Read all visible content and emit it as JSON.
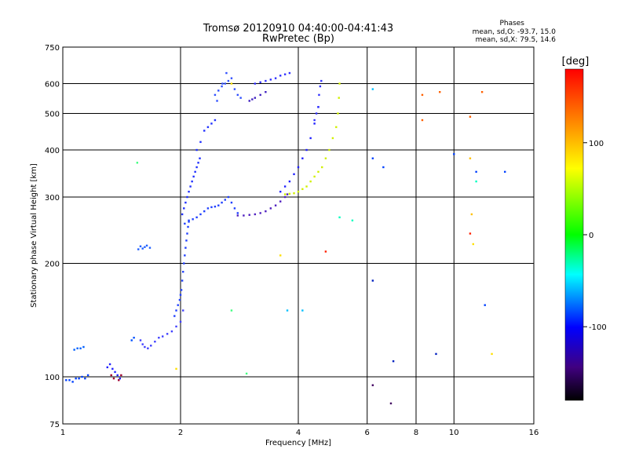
{
  "chart_data": {
    "type": "scatter",
    "title": "Tromsø 20120910 04:40:00-04:41:43",
    "subtitle": "RwPretec (Bp)",
    "xlabel": "Frequency [MHz]",
    "ylabel": "Stationary phase Virtual Height [km]",
    "x_scale": "log",
    "y_scale": "log",
    "xlim": [
      1,
      16
    ],
    "ylim": [
      75,
      750
    ],
    "x_ticks": [
      1,
      2,
      4,
      6,
      8,
      10,
      16
    ],
    "y_ticks": [
      75,
      100,
      200,
      300,
      400,
      500,
      600,
      750
    ],
    "grid": true,
    "stats": {
      "heading": "Phases",
      "line_o": "mean, sd,O: -93.7, 15.0",
      "line_x": "mean, sd,X:  79.5, 14.6"
    },
    "colorbar": {
      "label": "[deg]",
      "range": [
        -180,
        180
      ],
      "ticks": [
        100,
        0,
        -100
      ],
      "colors": [
        "#ff0000",
        "#ff8000",
        "#ffff00",
        "#00ff00",
        "#00ffff",
        "#0000ff",
        "#400080",
        "#000000"
      ]
    },
    "color_legend": {
      "blue": "-100",
      "purple": "-150",
      "yellow": "100",
      "lightblue": "-40",
      "orange": "150"
    },
    "series": [
      {
        "color": "#0040ff",
        "x": [
          1.02,
          1.04,
          1.06,
          1.08,
          1.1,
          1.12,
          1.14,
          1.16
        ],
        "y": [
          98,
          98,
          97,
          99,
          99,
          100,
          99,
          101
        ]
      },
      {
        "color": "#0060ff",
        "x": [
          1.07,
          1.09,
          1.11,
          1.13
        ],
        "y": [
          118,
          119,
          119,
          120
        ]
      },
      {
        "color": "#2020ff",
        "x": [
          1.3,
          1.32,
          1.34,
          1.36,
          1.38,
          1.4
        ],
        "y": [
          106,
          108,
          105,
          103,
          101,
          99
        ]
      },
      {
        "color": "#a00030",
        "x": [
          1.33,
          1.35,
          1.39,
          1.41
        ],
        "y": [
          101,
          99,
          98,
          101
        ]
      },
      {
        "color": "#2060ff",
        "x": [
          1.56,
          1.58,
          1.6,
          1.62,
          1.64,
          1.67
        ],
        "y": [
          218,
          222,
          219,
          221,
          223,
          220
        ]
      },
      {
        "color": "#0050ff",
        "x": [
          1.5,
          1.52
        ],
        "y": [
          125,
          127
        ]
      },
      {
        "color": "#4040ff",
        "x": [
          1.58,
          1.6,
          1.62,
          1.65,
          1.68,
          1.72,
          1.76,
          1.8,
          1.85,
          1.9,
          1.95,
          2.0,
          2.03
        ],
        "y": [
          125,
          122,
          120,
          119,
          121,
          124,
          127,
          128,
          130,
          132,
          136,
          140,
          150
        ]
      },
      {
        "color": "#2040ff",
        "x": [
          1.93,
          1.95,
          1.97,
          1.99,
          2.0,
          2.01,
          2.02,
          2.03,
          2.04,
          2.05,
          2.06,
          2.07,
          2.08,
          2.09,
          2.1
        ],
        "y": [
          145,
          150,
          155,
          160,
          165,
          170,
          180,
          190,
          200,
          210,
          220,
          230,
          240,
          250,
          260
        ]
      },
      {
        "color": "#2030ff",
        "x": [
          2.02,
          2.04,
          2.06,
          2.08,
          2.1,
          2.12,
          2.14,
          2.16,
          2.18,
          2.2,
          2.22,
          2.24
        ],
        "y": [
          270,
          280,
          290,
          300,
          310,
          320,
          330,
          340,
          350,
          360,
          370,
          380
        ]
      },
      {
        "color": "#2040ff",
        "x": [
          2.05,
          2.1,
          2.15,
          2.2,
          2.25,
          2.3,
          2.35,
          2.4,
          2.45,
          2.5,
          2.55,
          2.6,
          2.65,
          2.7,
          2.75,
          2.8
        ],
        "y": [
          255,
          258,
          262,
          265,
          270,
          275,
          280,
          282,
          283,
          285,
          290,
          295,
          300,
          290,
          280,
          272
        ]
      },
      {
        "color": "#2030ff",
        "x": [
          2.2,
          2.25,
          2.3,
          2.35,
          2.4,
          2.45
        ],
        "y": [
          400,
          420,
          450,
          460,
          470,
          480
        ]
      },
      {
        "color": "#3050ff",
        "x": [
          2.45,
          2.5,
          2.55,
          2.6,
          2.65,
          2.7,
          2.75,
          2.8,
          2.85,
          2.48,
          2.56,
          2.62
        ],
        "y": [
          560,
          575,
          590,
          600,
          610,
          620,
          580,
          560,
          550,
          540,
          600,
          640
        ]
      },
      {
        "color": "#4020c0",
        "x": [
          3.0,
          3.05,
          3.1,
          3.2,
          3.3
        ],
        "y": [
          540,
          545,
          550,
          560,
          570
        ]
      },
      {
        "color": "#3030ff",
        "x": [
          3.1,
          3.2,
          3.3,
          3.4,
          3.5,
          3.6,
          3.7,
          3.8
        ],
        "y": [
          600,
          605,
          610,
          615,
          620,
          630,
          635,
          640
        ]
      },
      {
        "color": "#5020c0",
        "x": [
          2.8,
          2.9,
          3.0,
          3.1,
          3.2,
          3.3,
          3.4,
          3.5,
          3.6,
          3.7,
          3.75
        ],
        "y": [
          268,
          268,
          269,
          270,
          272,
          275,
          280,
          285,
          292,
          300,
          305
        ]
      },
      {
        "color": "#2020ff",
        "x": [
          3.6,
          3.7,
          3.8,
          3.9,
          4.0,
          4.1,
          4.2,
          4.3,
          4.4,
          4.5
        ],
        "y": [
          310,
          320,
          330,
          345,
          360,
          380,
          400,
          430,
          470,
          520
        ]
      },
      {
        "color": "#3030ff",
        "x": [
          4.4,
          4.45,
          4.5,
          4.52,
          4.55,
          4.58
        ],
        "y": [
          480,
          500,
          520,
          560,
          590,
          610
        ]
      },
      {
        "color": "#d0f000",
        "x": [
          3.7,
          3.8,
          3.9,
          4.0,
          4.1,
          4.2,
          4.3,
          4.4,
          4.5,
          4.6,
          4.7,
          4.8,
          4.9,
          5.0,
          5.05,
          5.08,
          5.1
        ],
        "y": [
          305,
          306,
          307,
          310,
          315,
          320,
          330,
          340,
          350,
          360,
          380,
          400,
          430,
          460,
          500,
          550,
          600
        ]
      },
      {
        "color": "#ff6000",
        "x": [
          8.3,
          8.3,
          9.2,
          11.0,
          11.8
        ],
        "y": [
          560,
          480,
          570,
          490,
          570
        ]
      },
      {
        "color": "#ffc000",
        "x": [
          11.0,
          11.1
        ],
        "y": [
          380,
          270
        ]
      },
      {
        "color": "#ff2000",
        "x": [
          11.0,
          4.7
        ],
        "y": [
          240,
          215
        ]
      },
      {
        "color": "#0040ff",
        "x": [
          6.2,
          6.6,
          10.0,
          13.5,
          11.4,
          12.0
        ],
        "y": [
          380,
          360,
          390,
          350,
          350,
          155
        ]
      },
      {
        "color": "#00c0ff",
        "x": [
          6.2,
          3.75,
          4.1
        ],
        "y": [
          580,
          150,
          150
        ]
      },
      {
        "color": "#0020c0",
        "x": [
          6.2,
          7.0,
          9.0
        ],
        "y": [
          180,
          110,
          115
        ]
      },
      {
        "color": "#400060",
        "x": [
          6.2,
          6.9
        ],
        "y": [
          95,
          85
        ]
      },
      {
        "color": "#40ff80",
        "x": [
          1.55,
          2.7,
          2.95
        ],
        "y": [
          370,
          150,
          102
        ]
      },
      {
        "color": "#ffe000",
        "x": [
          1.95,
          2.7,
          3.6,
          12.5,
          11.2
        ],
        "y": [
          105,
          600,
          210,
          115,
          225
        ]
      },
      {
        "color": "#00ffc0",
        "x": [
          5.1,
          5.5,
          11.4
        ],
        "y": [
          265,
          260,
          330
        ]
      }
    ]
  }
}
